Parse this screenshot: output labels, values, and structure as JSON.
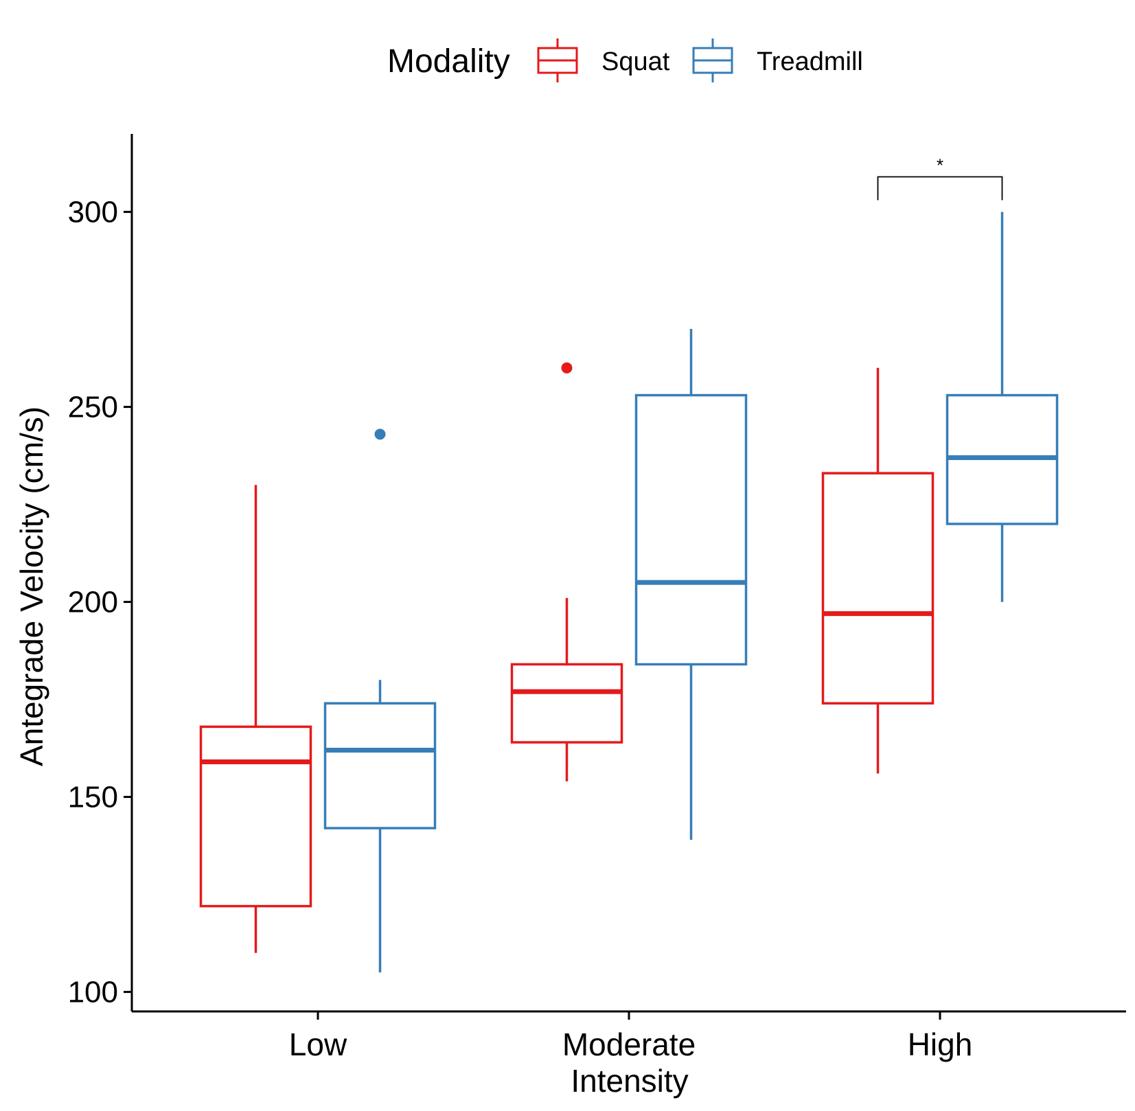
{
  "chart_data": {
    "type": "boxplot",
    "xlabel": "Intensity",
    "ylabel": "Antegrade Velocity (cm/s)",
    "ylim": [
      95,
      320
    ],
    "yticks": [
      100,
      150,
      200,
      250,
      300
    ],
    "grid": false,
    "categories": [
      "Low",
      "Moderate",
      "High"
    ],
    "legend": {
      "title": "Modality",
      "position": "top",
      "entries": [
        "Squat",
        "Treadmill"
      ]
    },
    "series": [
      {
        "name": "Squat",
        "color": "#e41a1c",
        "boxes": [
          {
            "category": "Low",
            "whisker_low": 110,
            "q1": 122,
            "median": 159,
            "q3": 168,
            "whisker_high": 230,
            "outliers": []
          },
          {
            "category": "Moderate",
            "whisker_low": 154,
            "q1": 164,
            "median": 177,
            "q3": 184,
            "whisker_high": 201,
            "outliers": [
              260
            ]
          },
          {
            "category": "High",
            "whisker_low": 156,
            "q1": 174,
            "median": 197,
            "q3": 233,
            "whisker_high": 260,
            "outliers": []
          }
        ]
      },
      {
        "name": "Treadmill",
        "color": "#377eb8",
        "boxes": [
          {
            "category": "Low",
            "whisker_low": 105,
            "q1": 142,
            "median": 162,
            "q3": 174,
            "whisker_high": 180,
            "outliers": [
              243
            ]
          },
          {
            "category": "Moderate",
            "whisker_low": 139,
            "q1": 184,
            "median": 205,
            "q3": 253,
            "whisker_high": 270,
            "outliers": []
          },
          {
            "category": "High",
            "whisker_low": 200,
            "q1": 220,
            "median": 237,
            "q3": 253,
            "whisker_high": 300,
            "outliers": []
          }
        ]
      }
    ],
    "annotations": [
      {
        "category": "High",
        "between": [
          "Squat",
          "Treadmill"
        ],
        "label": "*",
        "y_bracket": 309,
        "y_tip": 303
      }
    ]
  }
}
